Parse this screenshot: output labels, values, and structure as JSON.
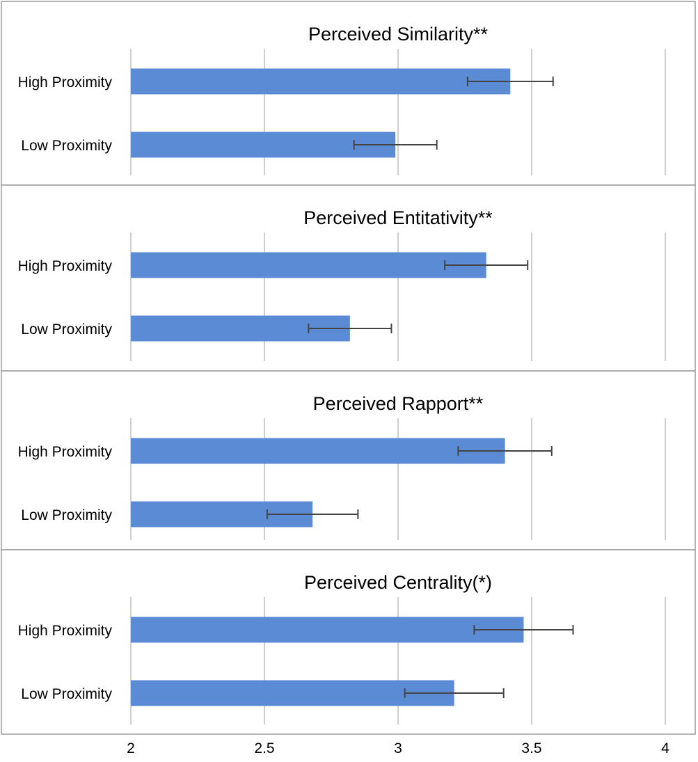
{
  "chart_data": [
    {
      "type": "bar",
      "orientation": "horizontal",
      "title": "Perceived Similarity**",
      "categories": [
        "High Proximity",
        "Low Proximity"
      ],
      "values": [
        3.42,
        2.99
      ],
      "error": [
        0.16,
        0.155
      ],
      "xlim": [
        2,
        4
      ],
      "grid": true
    },
    {
      "type": "bar",
      "orientation": "horizontal",
      "title": "Perceived Entitativity**",
      "categories": [
        "High Proximity",
        "Low Proximity"
      ],
      "values": [
        3.33,
        2.82
      ],
      "error": [
        0.155,
        0.155
      ],
      "xlim": [
        2,
        4
      ],
      "grid": true
    },
    {
      "type": "bar",
      "orientation": "horizontal",
      "title": "Perceived Rapport**",
      "categories": [
        "High Proximity",
        "Low Proximity"
      ],
      "values": [
        3.4,
        2.68
      ],
      "error": [
        0.175,
        0.17
      ],
      "xlim": [
        2,
        4
      ],
      "grid": true
    },
    {
      "type": "bar",
      "orientation": "horizontal",
      "title": "Perceived Centrality(*)",
      "categories": [
        "High Proximity",
        "Low Proximity"
      ],
      "values": [
        3.47,
        3.21
      ],
      "error": [
        0.185,
        0.185
      ],
      "xlim": [
        2,
        4
      ],
      "grid": true
    }
  ],
  "x_ticks": [
    "2",
    "2.5",
    "3",
    "3.5",
    "4"
  ],
  "x_tick_values": [
    2,
    2.5,
    3,
    3.5,
    4
  ],
  "colors": {
    "bar": "#5B8BD4",
    "grid": "#cfcfcf",
    "panel_border": "#9a9a9a",
    "error_bar": "#444444"
  }
}
